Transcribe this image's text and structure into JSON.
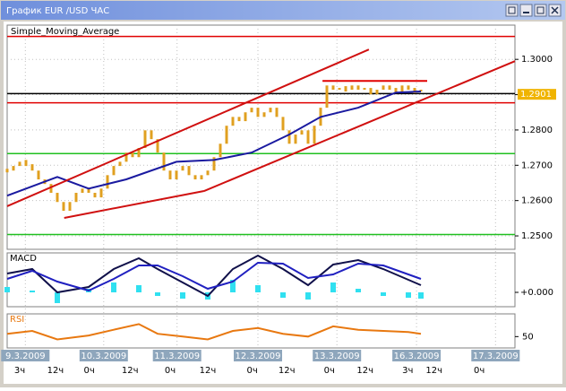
{
  "window": {
    "title": "График EUR /USD  ЧАС"
  },
  "chart_data": {
    "type": "price",
    "indicator_label": "Simple_Moving_Average",
    "xlim": [
      0,
      81
    ],
    "ylim": [
      1.2462,
      1.3097
    ],
    "yticks": [
      {
        "value": 1.25,
        "label": "1.2500"
      },
      {
        "value": 1.26,
        "label": "1.2600"
      },
      {
        "value": 1.27,
        "label": "1.2700"
      },
      {
        "value": 1.28,
        "label": "1.2800"
      },
      {
        "value": 1.29,
        "label": "1.2900"
      },
      {
        "value": 1.3,
        "label": "1.3000"
      }
    ],
    "last_price": {
      "value": 1.2901,
      "label": "1.2901",
      "color": "#f0b400"
    },
    "price": {
      "color": "#e0a020",
      "values": [
        1.2685,
        1.2698,
        1.271,
        1.2703,
        1.2685,
        1.266,
        1.2647,
        1.2622,
        1.2596,
        1.2571,
        1.2596,
        1.2622,
        1.2634,
        1.2622,
        1.2609,
        1.2634,
        1.2672,
        1.2698,
        1.271,
        1.2736,
        1.2723,
        1.2749,
        1.2799,
        1.2774,
        1.2736,
        1.2685,
        1.266,
        1.2685,
        1.2698,
        1.2672,
        1.266,
        1.2672,
        1.2685,
        1.2723,
        1.2761,
        1.2812,
        1.2837,
        1.2825,
        1.285,
        1.2863,
        1.2837,
        1.285,
        1.2863,
        1.2837,
        1.2799,
        1.2761,
        1.2787,
        1.2799,
        1.2761,
        1.2812,
        1.2863,
        1.2926,
        1.2914,
        1.2919,
        1.2914,
        1.2926,
        1.2914,
        1.2919,
        1.2901,
        1.2914,
        1.2926,
        1.2914,
        1.2909,
        1.2926,
        1.2914,
        1.2909,
        1.2914
      ]
    },
    "sma": {
      "color": "#1a1aa0",
      "x": [
        0,
        8,
        13,
        19,
        27,
        33,
        39,
        45,
        50,
        56,
        62,
        66
      ],
      "values": [
        1.2614,
        1.2667,
        1.2634,
        1.266,
        1.271,
        1.2715,
        1.2736,
        1.2787,
        1.2837,
        1.2863,
        1.2906,
        1.2909
      ]
    },
    "levels": [
      {
        "value": 1.3065,
        "color": "#e00000"
      },
      {
        "value": 1.2877,
        "color": "#e00000"
      },
      {
        "value": 1.2733,
        "color": "#20c020"
      },
      {
        "value": 1.2504,
        "color": "#20c020"
      },
      {
        "value": 1.2903,
        "color": "#000000"
      }
    ],
    "trendlines": [
      {
        "color": "#d01010",
        "x": [
          0,
          57.7
        ],
        "values": [
          1.2584,
          1.3028
        ]
      },
      {
        "color": "#d01010",
        "x": [
          9.1,
          31.4
        ],
        "values": [
          1.2551,
          1.2627
        ]
      },
      {
        "color": "#d01010",
        "x": [
          31.4,
          81
        ],
        "values": [
          1.2627,
          1.2995
        ]
      },
      {
        "color": "#e00000",
        "x": [
          50.3,
          67
        ],
        "values": [
          1.2939,
          1.2939
        ]
      }
    ],
    "dates": [
      {
        "value": 2.9,
        "label": "9.3.2009"
      },
      {
        "value": 15.4,
        "label": "10.3.2009"
      },
      {
        "value": 27.1,
        "label": "11.3.2009"
      },
      {
        "value": 40,
        "label": "12.3.2009"
      },
      {
        "value": 52.6,
        "label": "13.3.2009"
      },
      {
        "value": 65.3,
        "label": "16.3.2009"
      },
      {
        "value": 77.9,
        "label": "17.3.2009"
      }
    ],
    "hours": [
      {
        "value": 2,
        "label": "3ч"
      },
      {
        "value": 7.7,
        "label": "12ч"
      },
      {
        "value": 13.1,
        "label": "0ч"
      },
      {
        "value": 19.6,
        "label": "12ч"
      },
      {
        "value": 26,
        "label": "0ч"
      },
      {
        "value": 32,
        "label": "12ч"
      },
      {
        "value": 39.1,
        "label": "0ч"
      },
      {
        "value": 44.6,
        "label": "12ч"
      },
      {
        "value": 51.4,
        "label": "0ч"
      },
      {
        "value": 57.1,
        "label": "12ч"
      },
      {
        "value": 63.9,
        "label": "3ч"
      },
      {
        "value": 68.1,
        "label": "12ч"
      },
      {
        "value": 75.3,
        "label": "0ч"
      }
    ],
    "macd": {
      "label": "MACD",
      "ylim": [
        -0.0016,
        0.0044
      ],
      "yticks": [
        {
          "value": 0,
          "label": "+0.000"
        }
      ],
      "x": [
        0,
        4,
        8,
        13,
        17,
        21,
        24,
        28,
        32,
        36,
        40,
        44,
        48,
        52,
        56,
        60,
        64,
        66
      ],
      "main": {
        "color": "#10104a",
        "values": [
          0.0021,
          0.0026,
          0,
          0.0006,
          0.0026,
          0.0038,
          0.0026,
          0.0011,
          -0.0004,
          0.0026,
          0.0041,
          0.0026,
          0.0008,
          0.0031,
          0.0036,
          0.0026,
          0.0014,
          0.0008
        ]
      },
      "signal": {
        "color": "#2020c0",
        "values": [
          0.0015,
          0.0024,
          0.0012,
          0.0002,
          0.0015,
          0.003,
          0.003,
          0.0018,
          0.0004,
          0.0012,
          0.0033,
          0.0032,
          0.0016,
          0.002,
          0.0032,
          0.003,
          0.002,
          0.0015
        ]
      },
      "histogram": {
        "color": "#30e0f0",
        "values": [
          0.0006,
          0.0002,
          -0.0012,
          0.0004,
          0.0011,
          0.0008,
          -0.0004,
          -0.0007,
          -0.0008,
          0.0014,
          0.0008,
          -0.0006,
          -0.0008,
          0.0011,
          0.0004,
          -0.0004,
          -0.0006,
          -0.0007
        ]
      }
    },
    "rsi": {
      "label": "RSI",
      "color": "#e87810",
      "ylim": [
        30,
        90
      ],
      "yticks": [
        50
      ],
      "x": [
        0,
        4,
        8,
        13,
        17,
        21,
        24,
        28,
        32,
        36,
        40,
        44,
        48,
        52,
        56,
        60,
        64,
        66
      ],
      "values": [
        55,
        60,
        45,
        52,
        62,
        72,
        55,
        50,
        45,
        60,
        65,
        55,
        50,
        68,
        62,
        60,
        58,
        55
      ]
    }
  }
}
